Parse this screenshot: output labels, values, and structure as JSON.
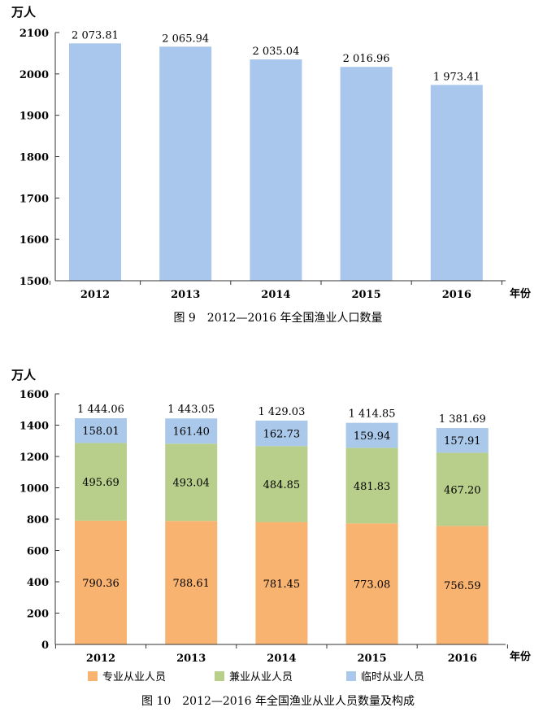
{
  "chart_data": [
    {
      "type": "bar",
      "title": "图 9　2012—2016 年全国渔业人口数量",
      "ylabel": "万人",
      "xlabel": "年份",
      "ylim": [
        1500,
        2100
      ],
      "yticks": [
        1500,
        1600,
        1700,
        1800,
        1900,
        2000,
        2100
      ],
      "categories": [
        "2012",
        "2013",
        "2014",
        "2015",
        "2016"
      ],
      "values": [
        2073.81,
        2065.94,
        2035.04,
        2016.96,
        1973.41
      ],
      "value_labels": [
        "2 073.81",
        "2 065.94",
        "2 035.04",
        "2 016.96",
        "1 973.41"
      ],
      "bar_color": "#a9c6ec"
    },
    {
      "type": "bar",
      "stacked": true,
      "title": "图 10　2012—2016 年全国渔业从业人员数量及构成",
      "ylabel": "万人",
      "xlabel": "年份",
      "ylim": [
        0,
        1600
      ],
      "yticks": [
        0,
        200,
        400,
        600,
        800,
        1000,
        1200,
        1400,
        1600
      ],
      "categories": [
        "2012",
        "2013",
        "2014",
        "2015",
        "2016"
      ],
      "series": [
        {
          "name": "专业从业人员",
          "color": "#f9b370",
          "values": [
            790.36,
            788.61,
            781.45,
            773.08,
            756.59
          ],
          "labels": [
            "790.36",
            "788.61",
            "781.45",
            "773.08",
            "756.59"
          ]
        },
        {
          "name": "兼业从业人员",
          "color": "#b7cf8a",
          "values": [
            495.69,
            493.04,
            484.85,
            481.83,
            467.2
          ],
          "labels": [
            "495.69",
            "493.04",
            "484.85",
            "481.83",
            "467.20"
          ]
        },
        {
          "name": "临时从业人员",
          "color": "#aac8ea",
          "values": [
            158.01,
            161.4,
            162.73,
            159.94,
            157.91
          ],
          "labels": [
            "158.01",
            "161.40",
            "162.73",
            "159.94",
            "157.91"
          ]
        }
      ],
      "totals": [
        1444.06,
        1443.05,
        1429.03,
        1414.85,
        1381.69
      ],
      "total_labels": [
        "1 444.06",
        "1 443.05",
        "1 429.03",
        "1 414.85",
        "1 381.69"
      ]
    }
  ]
}
